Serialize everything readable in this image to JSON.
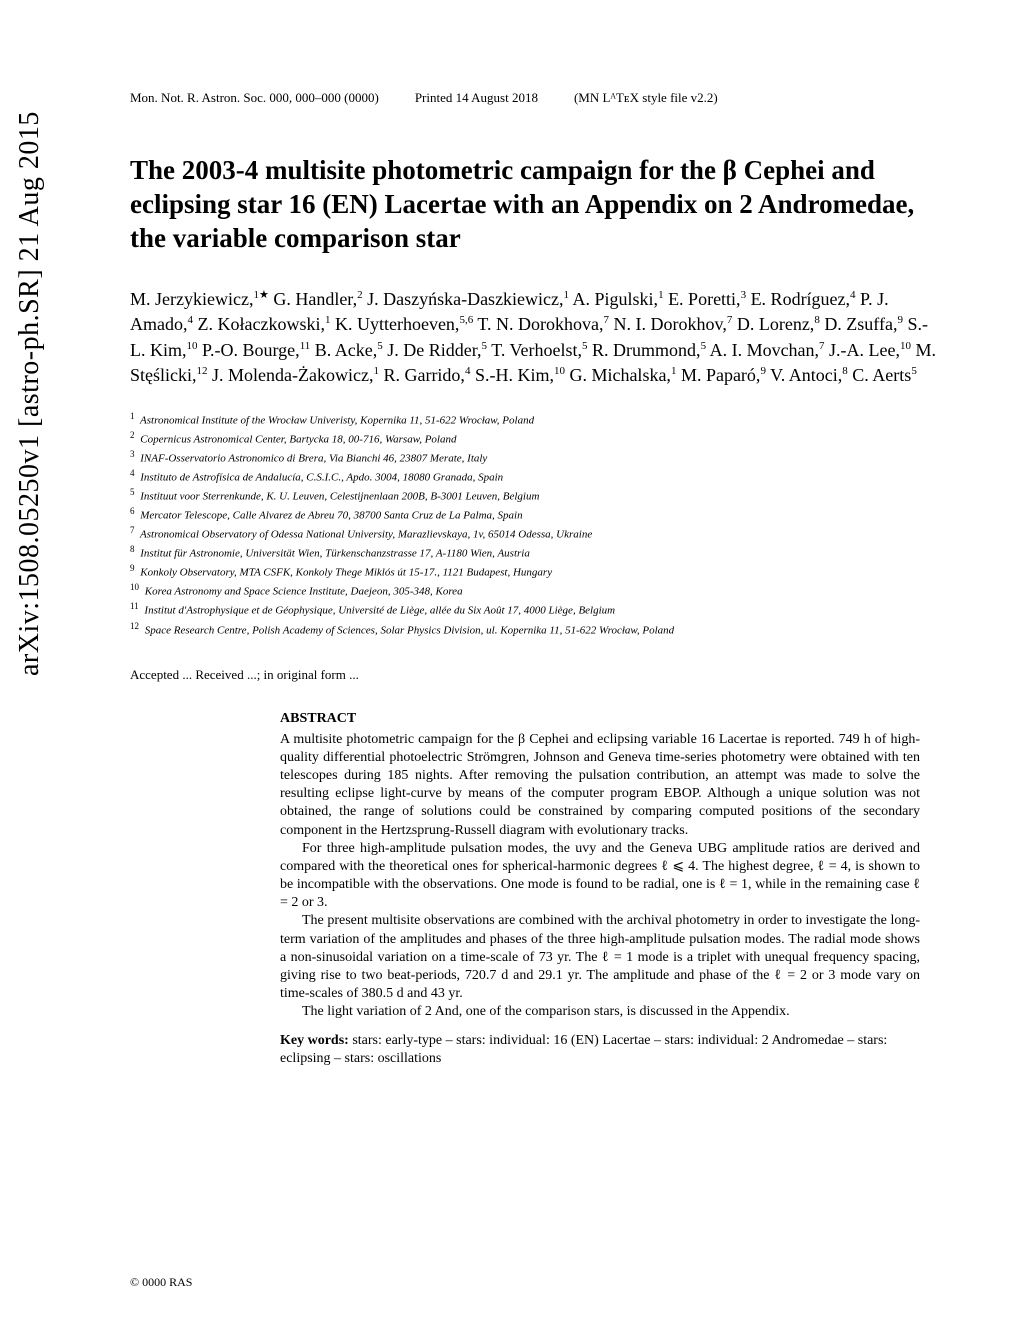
{
  "arxiv_id": "arXiv:1508.05250v1  [astro-ph.SR]  21 Aug 2015",
  "header": {
    "journal": "Mon. Not. R. Astron. Soc. 000, 000–000 (0000)",
    "printed": "Printed 14 August 2018",
    "style": "(MN LᴬTᴇX style file v2.2)"
  },
  "title": "The 2003-4 multisite photometric campaign for the β Cephei and eclipsing star 16 (EN) Lacertae with an Appendix on 2 Andromedae, the variable comparison star",
  "authors_html": "M. Jerzykiewicz,<sup>1★</sup> G. Handler,<sup>2</sup> J. Daszyńska-Daszkiewicz,<sup>1</sup> A. Pigulski,<sup>1</sup> E. Poretti,<sup>3</sup> E. Rodríguez,<sup>4</sup> P. J. Amado,<sup>4</sup> Z. Kołaczkowski,<sup>1</sup> K. Uytterhoeven,<sup>5,6</sup> T. N. Dorokhova,<sup>7</sup> N. I. Dorokhov,<sup>7</sup> D. Lorenz,<sup>8</sup> D. Zsuffa,<sup>9</sup> S.-L. Kim,<sup>10</sup> P.-O. Bourge,<sup>11</sup> B. Acke,<sup>5</sup> J. De Ridder,<sup>5</sup> T. Verhoelst,<sup>5</sup> R. Drummond,<sup>5</sup> A. I. Movchan,<sup>7</sup> J.-A. Lee,<sup>10</sup> M. Stęślicki,<sup>12</sup> J. Molenda-Żakowicz,<sup>1</sup> R. Garrido,<sup>4</sup> S.-H. Kim,<sup>10</sup> G. Michalska,<sup>1</sup> M. Paparó,<sup>9</sup> V. Antoci,<sup>8</sup> C. Aerts<sup>5</sup>",
  "affiliations": [
    {
      "n": "1",
      "text": "Astronomical Institute of the Wrocław Univeristy, Kopernika 11, 51-622 Wrocław, Poland"
    },
    {
      "n": "2",
      "text": "Copernicus Astronomical Center, Bartycka 18, 00-716, Warsaw, Poland"
    },
    {
      "n": "3",
      "text": "INAF-Osservatorio Astronomico di Brera, Via Bianchi 46, 23807 Merate, Italy"
    },
    {
      "n": "4",
      "text": "Instituto de Astrofísica de Andalucía, C.S.I.C., Apdo. 3004, 18080 Granada, Spain"
    },
    {
      "n": "5",
      "text": "Instituut voor Sterrenkunde, K. U. Leuven, Celestijnenlaan 200B, B-3001 Leuven, Belgium"
    },
    {
      "n": "6",
      "text": "Mercator Telescope, Calle Alvarez de Abreu 70, 38700 Santa Cruz de La Palma, Spain"
    },
    {
      "n": "7",
      "text": "Astronomical Observatory of Odessa National University, Marazlievskaya, 1v, 65014 Odessa, Ukraine"
    },
    {
      "n": "8",
      "text": "Institut für Astronomie, Universität Wien, Türkenschanzstrasse 17, A-1180 Wien, Austria"
    },
    {
      "n": "9",
      "text": "Konkoly Observatory, MTA CSFK, Konkoly Thege Miklós út 15-17., 1121 Budapest, Hungary"
    },
    {
      "n": "10",
      "text": "Korea Astronomy and Space Science Institute, Daejeon, 305-348, Korea"
    },
    {
      "n": "11",
      "text": "Institut d'Astrophysique et de Géophysique, Université de Liège, allée du Six Août 17, 4000 Liège, Belgium"
    },
    {
      "n": "12",
      "text": "Space Research Centre, Polish Academy of Sciences, Solar Physics Division, ul. Kopernika 11, 51-622 Wrocław, Poland"
    }
  ],
  "accepted": "Accepted ... Received ...; in original form ...",
  "abstract_heading": "ABSTRACT",
  "abstract_paragraphs": [
    "A multisite photometric campaign for the β Cephei and eclipsing variable 16 Lacertae is reported. 749 h of high-quality differential photoelectric Strömgren, Johnson and Geneva time-series photometry were obtained with ten telescopes during 185 nights. After removing the pulsation contribution, an attempt was made to solve the resulting eclipse light-curve by means of the computer program EBOP. Although a unique solution was not obtained, the range of solutions could be constrained by comparing computed positions of the secondary component in the Hertzsprung-Russell diagram with evolutionary tracks.",
    "For three high-amplitude pulsation modes, the uvy and the Geneva UBG amplitude ratios are derived and compared with the theoretical ones for spherical-harmonic degrees ℓ ⩽ 4. The highest degree, ℓ = 4, is shown to be incompatible with the observations. One mode is found to be radial, one is ℓ = 1, while in the remaining case ℓ = 2 or 3.",
    "The present multisite observations are combined with the archival photometry in order to investigate the long-term variation of the amplitudes and phases of the three high-amplitude pulsation modes. The radial mode shows a non-sinusoidal variation on a time-scale of 73 yr. The ℓ = 1 mode is a triplet with unequal frequency spacing, giving rise to two beat-periods, 720.7 d and 29.1 yr. The amplitude and phase of the ℓ = 2 or 3 mode vary on time-scales of 380.5 d and 43 yr.",
    "The light variation of 2 And, one of the comparison stars, is discussed in the Appendix."
  ],
  "keywords_label": "Key words:",
  "keywords_text": " stars: early-type – stars: individual: 16 (EN) Lacertae – stars: individual: 2 Andromedae – stars: eclipsing – stars: oscillations",
  "copyright": "© 0000 RAS"
}
